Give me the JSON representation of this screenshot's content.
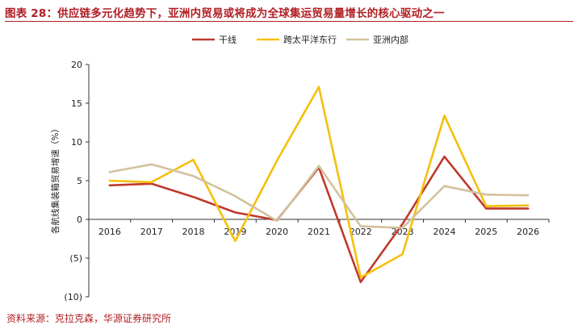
{
  "title": "图表 28：供应链多元化趋势下，亚洲内贸易或将成为全球集运贸易量增长的核心驱动之一",
  "source": "资料来源：克拉克森，华源证券研究所",
  "chart_data": {
    "type": "line",
    "title": "",
    "xlabel": "",
    "ylabel": "各航线集装箱贸易增速（%）",
    "x": [
      "2016",
      "2017",
      "2018",
      "2019",
      "2020",
      "2021",
      "2022",
      "2023",
      "2024",
      "2025",
      "2026"
    ],
    "ylim": [
      -10,
      20
    ],
    "yticks": [
      20,
      15,
      10,
      5,
      0,
      -5,
      -10
    ],
    "ytick_labels": [
      "20",
      "15",
      "10",
      "5",
      "0",
      "(5)",
      "(10)"
    ],
    "grid": false,
    "legend_position": "top-center",
    "series": [
      {
        "name": "干线",
        "color": "#c0392b",
        "values": [
          4.4,
          4.6,
          2.9,
          0.9,
          -0.1,
          6.7,
          -8.1,
          -0.6,
          8.1,
          1.4,
          1.4
        ]
      },
      {
        "name": "跨太平洋东行",
        "color": "#f5c00a",
        "values": [
          5.0,
          4.8,
          7.7,
          -2.8,
          7.6,
          17.1,
          -7.5,
          -4.5,
          13.4,
          1.7,
          1.8
        ]
      },
      {
        "name": "亚洲内部",
        "color": "#d2c29d",
        "values": [
          6.1,
          7.1,
          5.6,
          3.0,
          -0.2,
          6.9,
          -0.9,
          -1.1,
          4.3,
          3.2,
          3.1
        ]
      }
    ]
  }
}
